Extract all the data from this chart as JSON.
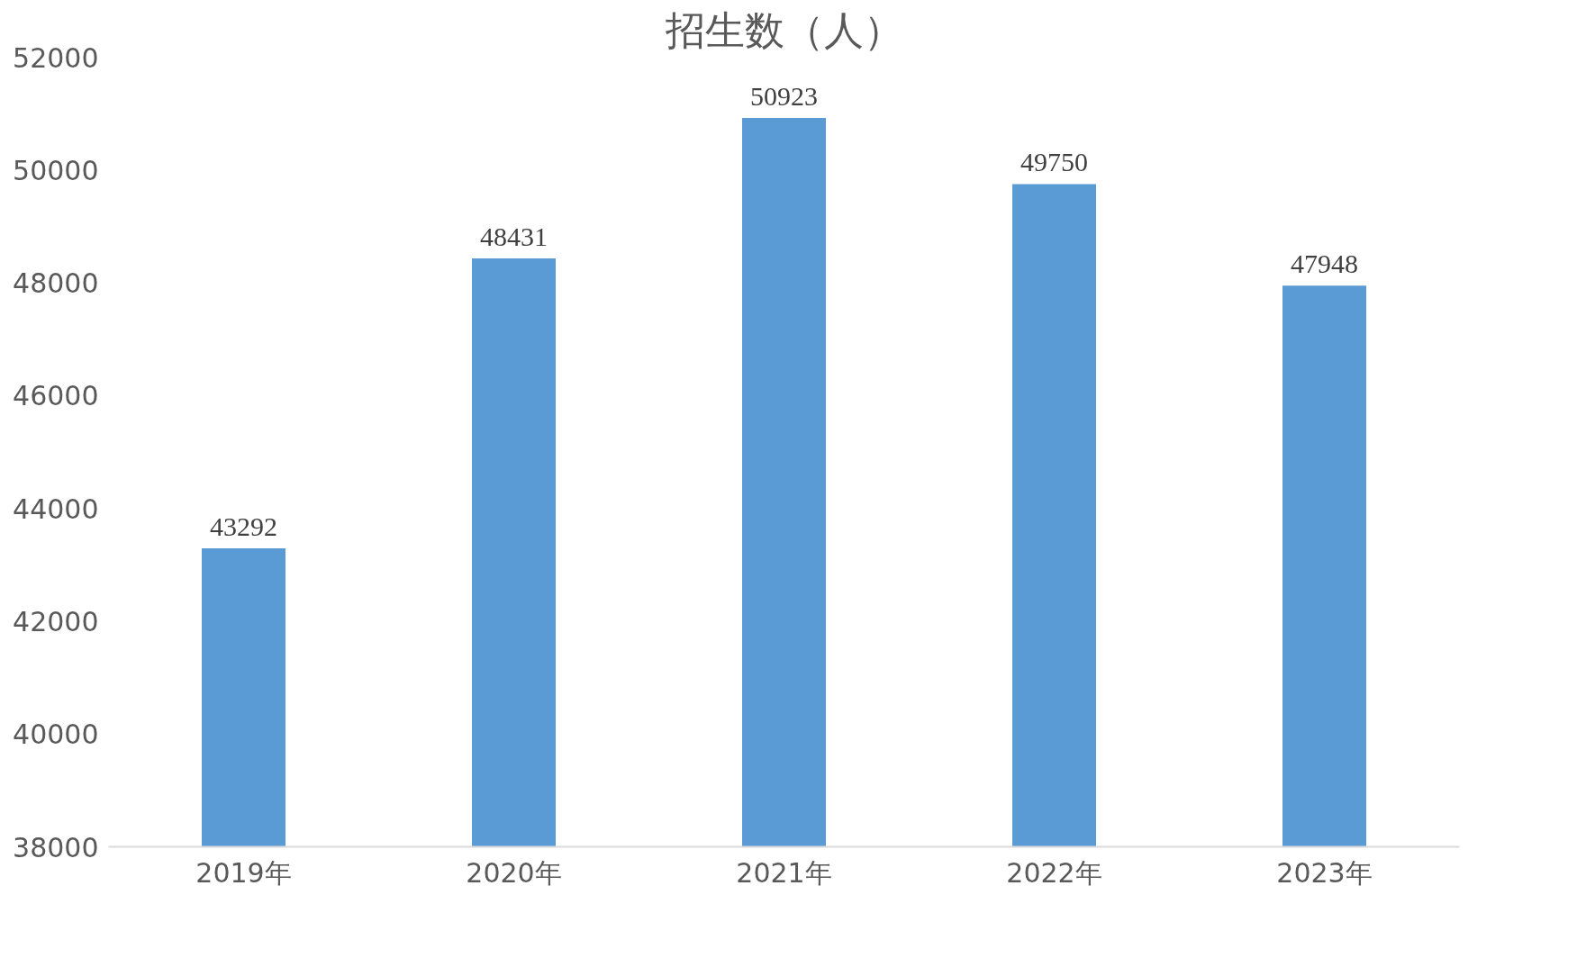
{
  "chart_data": {
    "type": "bar",
    "title": "招生数（人）",
    "categories": [
      "2019年",
      "2020年",
      "2021年",
      "2022年",
      "2023年"
    ],
    "values": [
      43292,
      48431,
      50923,
      49750,
      47948
    ],
    "color": "#5b9bd5",
    "ylim": [
      38000,
      52000
    ],
    "yticks": [
      38000,
      40000,
      42000,
      44000,
      46000,
      48000,
      50000,
      52000
    ],
    "grid": false,
    "data_labels": true
  }
}
